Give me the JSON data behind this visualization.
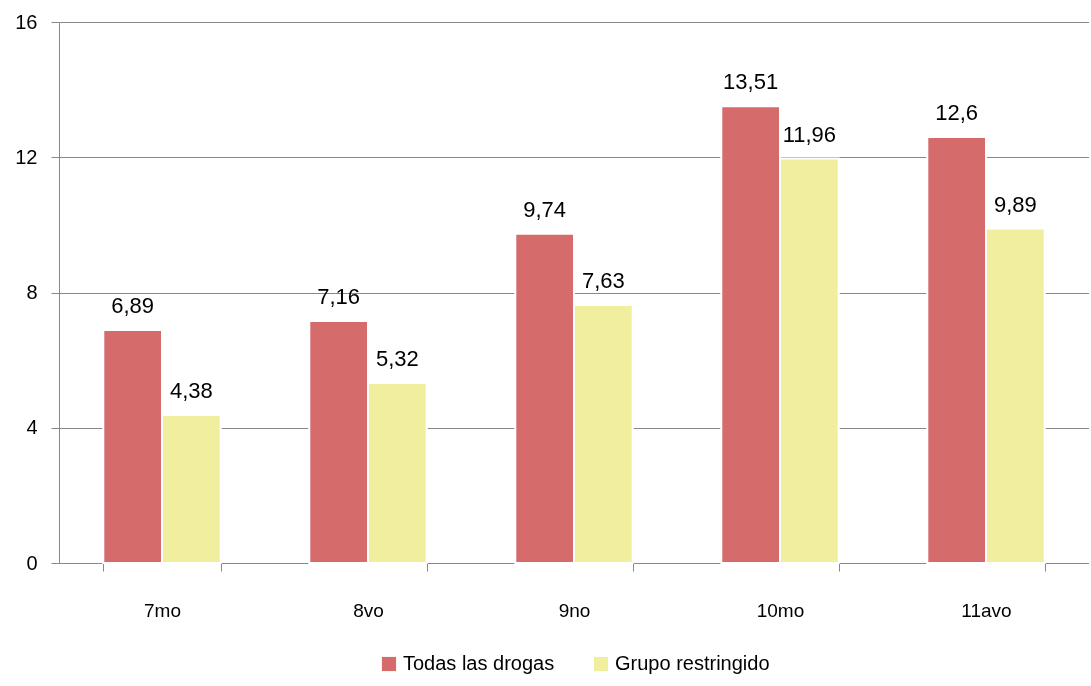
{
  "chart_data": {
    "type": "bar",
    "categories": [
      "7mo",
      "8vo",
      "9no",
      "10mo",
      "11avo"
    ],
    "series": [
      {
        "name": "Todas las drogas",
        "color": "#d56b6b",
        "values": [
          6.89,
          7.16,
          9.74,
          13.51,
          12.6
        ],
        "value_labels": [
          "6,89",
          "7,16",
          "9,74",
          "13,51",
          "12,6"
        ]
      },
      {
        "name": "Grupo restringido",
        "color": "#f1ee9e",
        "values": [
          4.38,
          5.32,
          7.63,
          11.96,
          9.89
        ],
        "value_labels": [
          "4,38",
          "5,32",
          "7,63",
          "11,96",
          "9,89"
        ]
      }
    ],
    "ylim": [
      0,
      16
    ],
    "yticks": [
      0,
      4,
      8,
      12,
      16
    ],
    "grid": "y",
    "legend": "bottom"
  }
}
